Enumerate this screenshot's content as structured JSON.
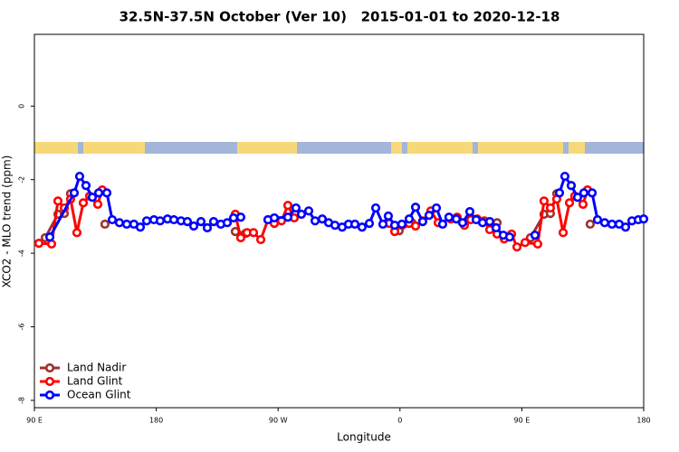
{
  "chart_data": {
    "type": "line",
    "title": "32.5N-37.5N October (Ver 10)   2015-01-01 to 2020-12-18",
    "x_label": "Longitude",
    "y_label": "XCO2 - MLO trend (ppm)",
    "xlim": [
      90,
      540
    ],
    "ylim": [
      -8.2,
      1.95
    ],
    "xticks": [
      {
        "value": 90,
        "label": "90 E"
      },
      180,
      {
        "value": 270,
        "label": "90 W"
      },
      {
        "value": 360,
        "label": "0"
      },
      {
        "value": 450,
        "label": "90 E"
      },
      {
        "value": 540,
        "label": "180"
      }
    ],
    "yticks": [
      0,
      -2,
      -4,
      -6,
      -8
    ],
    "legend": "bottom-left",
    "series": [
      {
        "name": "Land Nadir",
        "color": "#a0302e",
        "x": [
          98.0,
          107.4,
          112.1,
          116.7,
          null,
          142.1,
          null,
          238.4,
          246.0,
          null,
          359.4,
          368.8,
          null,
          431.7,
          null,
          456.4,
          466.4,
          471.1,
          475.8,
          null,
          500.5
        ],
        "values": [
          -3.58,
          -2.94,
          -2.92,
          -2.38,
          null,
          -3.21,
          null,
          -3.41,
          -3.46,
          null,
          -3.39,
          -3.17,
          null,
          -3.17,
          null,
          -3.58,
          -2.94,
          -2.92,
          -2.38,
          null,
          -3.21
        ]
      },
      {
        "name": "Land Glint",
        "color": "#ff0000",
        "x": [
          93.3,
          102.7,
          107.4,
          112.1,
          116.7,
          121.4,
          126.1,
          130.8,
          136.8,
          140.1,
          null,
          238.4,
          242.4,
          247.1,
          251.8,
          257.2,
          262.5,
          267.2,
          272.5,
          277.2,
          281.9,
          null,
          352.1,
          356.1,
          361.4,
          366.8,
          371.5,
          376.8,
          382.8,
          388.2,
          397.6,
          402.2,
          407.6,
          412.3,
          417.0,
          422.3,
          426.3,
          431.7,
          437.0,
          442.4,
          446.4,
          452.4,
          461.7,
          466.4,
          471.1,
          475.8,
          480.5,
          485.2,
          489.1,
          495.2,
          498.5
        ],
        "values": [
          -3.73,
          -3.75,
          -2.58,
          -2.77,
          -2.53,
          -3.44,
          -2.63,
          -2.45,
          -2.67,
          -2.28,
          null,
          -2.94,
          -3.58,
          -3.44,
          -3.44,
          -3.63,
          -3.09,
          -3.19,
          -3.12,
          -2.7,
          -3.04,
          null,
          -3.19,
          -3.41,
          -3.24,
          -3.19,
          -3.26,
          -3.12,
          -2.85,
          -3.17,
          -3.07,
          -3.02,
          -3.24,
          -3.09,
          -3.07,
          -3.12,
          -3.36,
          -3.48,
          -3.61,
          -3.48,
          -3.83,
          -3.71,
          -3.75,
          -2.58,
          -2.77,
          -2.53,
          -3.44,
          -2.63,
          -2.45,
          -2.67,
          -2.28
        ]
      },
      {
        "name": "Ocean Glint",
        "color": "#0000ff",
        "x": [
          101.4,
          119.4,
          123.4,
          128.1,
          132.8,
          137.5,
          143.5,
          147.5,
          152.8,
          158.2,
          163.5,
          168.2,
          172.9,
          178.3,
          182.9,
          188.3,
          193.0,
          198.3,
          203.0,
          207.7,
          213.0,
          217.7,
          222.4,
          227.7,
          232.4,
          237.1,
          242.4,
          null,
          262.5,
          267.2,
          277.2,
          283.2,
          287.2,
          292.6,
          297.3,
          302.6,
          307.3,
          312.0,
          317.3,
          322.0,
          326.7,
          332.0,
          337.4,
          342.1,
          347.4,
          351.4,
          356.1,
          361.4,
          366.8,
          371.5,
          376.8,
          381.5,
          386.9,
          391.5,
          396.2,
          401.6,
          406.2,
          411.6,
          416.3,
          421.0,
          426.3,
          431.0,
          436.3,
          441.0,
          null,
          459.7,
          null,
          477.8,
          481.8,
          486.5,
          491.2,
          495.8,
          501.9,
          505.9,
          511.2,
          516.6,
          521.9,
          526.6,
          531.3,
          536.0,
          540
        ],
        "values": [
          -3.56,
          -2.36,
          -1.91,
          -2.16,
          -2.48,
          -2.36,
          -2.36,
          -3.09,
          -3.17,
          -3.21,
          -3.21,
          -3.29,
          -3.12,
          -3.09,
          -3.12,
          -3.07,
          -3.09,
          -3.12,
          -3.14,
          -3.26,
          -3.14,
          -3.31,
          -3.14,
          -3.21,
          -3.17,
          -3.04,
          -3.02,
          null,
          -3.09,
          -3.04,
          -3.02,
          -2.77,
          -2.94,
          -2.85,
          -3.12,
          -3.07,
          -3.17,
          -3.24,
          -3.29,
          -3.21,
          -3.21,
          -3.29,
          -3.19,
          -2.77,
          -3.21,
          -2.99,
          -3.24,
          -3.21,
          -3.07,
          -2.75,
          -3.14,
          -2.97,
          -2.77,
          -3.21,
          -3.02,
          -3.07,
          -3.17,
          -2.87,
          -3.09,
          -3.17,
          -3.14,
          -3.31,
          -3.51,
          -3.56,
          null,
          -3.51,
          null,
          -2.36,
          -1.91,
          -2.16,
          -2.48,
          -2.36,
          -2.36,
          -3.09,
          -3.17,
          -3.21,
          -3.21,
          -3.29,
          -3.12,
          -3.09,
          -3.07
        ]
      }
    ]
  }
}
